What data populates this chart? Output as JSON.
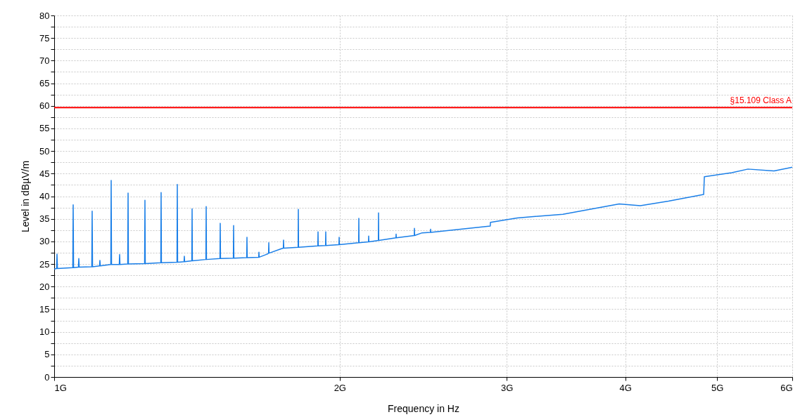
{
  "chart_data": {
    "type": "line",
    "xlabel": "Frequency in Hz",
    "ylabel": "Level in dBµV/m",
    "log": "x",
    "grid": true,
    "xlim": [
      1,
      6
    ],
    "xticks": [
      {
        "value": 1,
        "label": "1G"
      },
      {
        "value": 2,
        "label": "2G"
      },
      {
        "value": 3,
        "label": "3G"
      },
      {
        "value": 4,
        "label": "4G"
      },
      {
        "value": 5,
        "label": "5G"
      },
      {
        "value": 6,
        "label": "6G"
      }
    ],
    "ylim": [
      0,
      80
    ],
    "yticks": [
      0,
      {
        "value": 2.5,
        "label": null
      },
      5,
      {
        "value": 7.5,
        "label": null
      },
      10,
      {
        "value": 12.5,
        "label": null
      },
      15,
      {
        "value": 17.5,
        "label": null
      },
      20,
      {
        "value": 22.5,
        "label": null
      },
      25,
      {
        "value": 27.5,
        "label": null
      },
      30,
      {
        "value": 32.5,
        "label": null
      },
      35,
      {
        "value": 37.5,
        "label": null
      },
      40,
      {
        "value": 42.5,
        "label": null
      },
      45,
      {
        "value": 47.5,
        "label": null
      },
      50,
      {
        "value": 52.5,
        "label": null
      },
      55,
      {
        "value": 57.5,
        "label": null
      },
      60,
      {
        "value": 62.5,
        "label": null
      },
      65,
      {
        "value": 67.5,
        "label": null
      },
      70,
      {
        "value": 72.5,
        "label": null
      },
      75,
      {
        "value": 77.5,
        "label": null
      },
      80
    ],
    "x": [
      1.0,
      1.0059,
      1.0069,
      1.0079,
      1.0462,
      1.0472,
      1.0482,
      1.0606,
      1.0616,
      1.0626,
      1.0956,
      1.0966,
      1.0976,
      1.1164,
      1.1174,
      1.1184,
      1.1474,
      1.1484,
      1.1494,
      1.1712,
      1.1722,
      1.1732,
      1.1955,
      1.1965,
      1.1975,
      1.2455,
      1.2465,
      1.2475,
      1.2954,
      1.2964,
      1.2974,
      1.3474,
      1.3484,
      1.3494,
      1.3706,
      1.3716,
      1.3726,
      1.3967,
      1.3977,
      1.3987,
      1.4453,
      1.4463,
      1.4473,
      1.4955,
      1.4965,
      1.4975,
      1.5449,
      1.5459,
      1.5469,
      1.5958,
      1.5968,
      1.5978,
      1.6429,
      1.6439,
      1.6449,
      1.678,
      1.6827,
      1.6837,
      1.6847,
      1.7362,
      1.7441,
      1.7451,
      1.7461,
      1.8079,
      1.8089,
      1.8099,
      1.8965,
      1.8975,
      1.8985,
      1.9324,
      1.9334,
      1.9344,
      1.9963,
      1.9973,
      1.9983,
      2.094,
      2.095,
      2.096,
      2.1447,
      2.1457,
      2.1467,
      2.1967,
      2.1977,
      2.1987,
      2.2925,
      2.2935,
      2.2945,
      2.3967,
      2.3977,
      2.3987,
      2.4432,
      2.4928,
      2.4938,
      2.4948,
      2.8825,
      2.8835,
      3.0769,
      3.4383,
      3.9417,
      4.1491,
      4.4424,
      4.8389,
      4.847,
      5.181,
      5.388,
      5.74,
      6.0
    ],
    "series": [
      {
        "color": "#1a7fe8",
        "values": [
          23.9,
          24.0,
          27.2,
          24.0,
          24.2,
          38.1,
          24.2,
          24.3,
          26.2,
          24.3,
          24.4,
          36.7,
          24.4,
          24.6,
          25.8,
          24.6,
          24.9,
          43.5,
          24.9,
          24.9,
          27.1,
          24.9,
          25.0,
          40.7,
          25.0,
          25.1,
          39.1,
          25.1,
          25.3,
          40.8,
          25.3,
          25.4,
          42.6,
          25.4,
          25.5,
          26.7,
          25.5,
          25.7,
          37.2,
          25.7,
          26.0,
          37.7,
          26.0,
          26.2,
          34.0,
          26.2,
          26.3,
          33.5,
          26.3,
          26.4,
          30.9,
          26.4,
          26.5,
          27.6,
          26.5,
          27.2,
          27.4,
          29.7,
          27.4,
          28.4,
          28.5,
          30.3,
          28.5,
          28.7,
          37.1,
          28.7,
          29.0,
          32.1,
          29.0,
          29.1,
          32.1,
          29.1,
          29.3,
          30.9,
          29.3,
          29.7,
          35.1,
          29.7,
          29.9,
          31.2,
          29.9,
          30.2,
          36.3,
          30.2,
          30.8,
          31.6,
          30.8,
          31.3,
          32.9,
          31.3,
          31.9,
          32.0,
          32.7,
          32.0,
          33.4,
          34.2,
          35.2,
          36.0,
          38.3,
          37.9,
          38.9,
          40.4,
          44.3,
          45.2,
          46.0,
          45.6,
          46.4
        ]
      }
    ],
    "ref_lines": [
      {
        "axis": "y",
        "value": 59.6,
        "label": "§15.109 Class A",
        "color": "#ff0000"
      }
    ]
  }
}
